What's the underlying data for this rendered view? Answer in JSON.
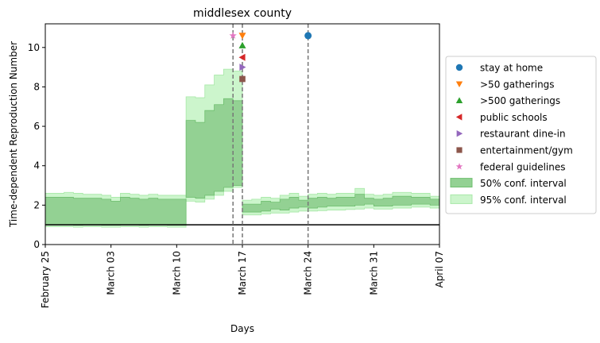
{
  "chart_data": {
    "type": "line",
    "title": "middlesex county",
    "xlabel": "Days",
    "ylabel": "Time-dependent Reproduction Number",
    "xlim": [
      "2020-02-25",
      "2020-04-07"
    ],
    "ylim": [
      0,
      11.2
    ],
    "x_ticks": [
      {
        "date": "2020-02-25",
        "label": "February 25"
      },
      {
        "date": "2020-03-03",
        "label": "March 03"
      },
      {
        "date": "2020-03-10",
        "label": "March 10"
      },
      {
        "date": "2020-03-17",
        "label": "March 17"
      },
      {
        "date": "2020-03-24",
        "label": "March 24"
      },
      {
        "date": "2020-03-31",
        "label": "March 31"
      },
      {
        "date": "2020-04-07",
        "label": "April 07"
      }
    ],
    "y_ticks": [
      0,
      2,
      4,
      6,
      8,
      10
    ],
    "reference_line": {
      "y": 1,
      "color": "#000000"
    },
    "vertical_lines": [
      "2020-03-16",
      "2020-03-17",
      "2020-03-24"
    ],
    "dates": [
      "2020-02-25",
      "2020-02-26",
      "2020-02-27",
      "2020-02-28",
      "2020-02-29",
      "2020-03-01",
      "2020-03-02",
      "2020-03-03",
      "2020-03-04",
      "2020-03-05",
      "2020-03-06",
      "2020-03-07",
      "2020-03-08",
      "2020-03-09",
      "2020-03-10",
      "2020-03-11",
      "2020-03-12",
      "2020-03-13",
      "2020-03-14",
      "2020-03-15",
      "2020-03-16",
      "2020-03-17",
      "2020-03-18",
      "2020-03-19",
      "2020-03-20",
      "2020-03-21",
      "2020-03-22",
      "2020-03-23",
      "2020-03-24",
      "2020-03-25",
      "2020-03-26",
      "2020-03-27",
      "2020-03-28",
      "2020-03-29",
      "2020-03-30",
      "2020-03-31",
      "2020-04-01",
      "2020-04-02",
      "2020-04-03",
      "2020-04-04",
      "2020-04-05",
      "2020-04-06"
    ],
    "series": [
      {
        "name": "95% conf. interval",
        "color": "#ccf5cc",
        "edge": "#a8e8a8",
        "lower": [
          0.9,
          0.9,
          0.9,
          0.88,
          0.9,
          0.9,
          0.88,
          0.88,
          0.9,
          0.9,
          0.88,
          0.9,
          0.9,
          0.88,
          0.88,
          2.2,
          2.15,
          2.3,
          2.5,
          2.7,
          2.9,
          1.5,
          1.5,
          1.55,
          1.6,
          1.6,
          1.65,
          1.7,
          1.7,
          1.72,
          1.75,
          1.75,
          1.78,
          1.8,
          1.85,
          1.8,
          1.8,
          1.85,
          1.85,
          1.9,
          1.9,
          1.85
        ],
        "upper": [
          2.6,
          2.6,
          2.65,
          2.6,
          2.55,
          2.55,
          2.5,
          2.4,
          2.6,
          2.55,
          2.5,
          2.55,
          2.5,
          2.5,
          2.5,
          7.5,
          7.45,
          8.1,
          8.6,
          8.9,
          8.8,
          2.25,
          2.3,
          2.4,
          2.35,
          2.5,
          2.6,
          2.45,
          2.55,
          2.6,
          2.55,
          2.6,
          2.6,
          2.85,
          2.55,
          2.5,
          2.55,
          2.65,
          2.65,
          2.6,
          2.6,
          2.45
        ]
      },
      {
        "name": "50% conf. interval",
        "color": "#93d193",
        "edge": "#6fbf6f",
        "lower": [
          1.0,
          1.0,
          1.0,
          0.98,
          1.0,
          1.0,
          0.98,
          0.98,
          1.0,
          1.0,
          0.98,
          1.0,
          1.0,
          0.98,
          0.98,
          2.4,
          2.35,
          2.5,
          2.7,
          2.9,
          3.0,
          1.65,
          1.65,
          1.7,
          1.8,
          1.75,
          1.85,
          1.9,
          1.85,
          1.9,
          1.95,
          1.95,
          1.95,
          2.0,
          2.05,
          1.95,
          1.95,
          2.0,
          2.0,
          2.05,
          2.05,
          2.0
        ],
        "upper": [
          2.4,
          2.4,
          2.4,
          2.35,
          2.35,
          2.35,
          2.3,
          2.2,
          2.4,
          2.35,
          2.3,
          2.35,
          2.3,
          2.3,
          2.3,
          6.3,
          6.2,
          6.8,
          7.1,
          7.4,
          7.3,
          2.05,
          2.05,
          2.2,
          2.15,
          2.3,
          2.4,
          2.25,
          2.35,
          2.4,
          2.35,
          2.4,
          2.4,
          2.55,
          2.35,
          2.3,
          2.35,
          2.45,
          2.45,
          2.4,
          2.4,
          2.3
        ]
      }
    ],
    "events": [
      {
        "name": "stay at home",
        "date": "2020-03-24",
        "y": 10.6,
        "marker": "circle",
        "color": "#1f77b4"
      },
      {
        "name": ">50 gatherings",
        "date": "2020-03-17",
        "y": 10.6,
        "marker": "triangle-down",
        "color": "#ff7f0e"
      },
      {
        "name": ">500 gatherings",
        "date": "2020-03-17",
        "y": 10.1,
        "marker": "triangle-up",
        "color": "#2ca02c"
      },
      {
        "name": "public schools",
        "date": "2020-03-17",
        "y": 9.5,
        "marker": "triangle-left",
        "color": "#d62728"
      },
      {
        "name": "restaurant dine-in",
        "date": "2020-03-17",
        "y": 9.0,
        "marker": "triangle-right",
        "color": "#9467bd"
      },
      {
        "name": "entertainment/gym",
        "date": "2020-03-17",
        "y": 8.4,
        "marker": "square",
        "color": "#8c564b"
      },
      {
        "name": "federal guidelines",
        "date": "2020-03-16",
        "y": 10.6,
        "marker": "star",
        "color": "#e377c2"
      }
    ],
    "legend": {
      "position": "right",
      "entries": [
        {
          "label": "stay at home",
          "marker": "circle",
          "color": "#1f77b4"
        },
        {
          "label": ">50 gatherings",
          "marker": "triangle-down",
          "color": "#ff7f0e"
        },
        {
          "label": ">500 gatherings",
          "marker": "triangle-up",
          "color": "#2ca02c"
        },
        {
          "label": "public schools",
          "marker": "triangle-left",
          "color": "#d62728"
        },
        {
          "label": "restaurant dine-in",
          "marker": "triangle-right",
          "color": "#9467bd"
        },
        {
          "label": "entertainment/gym",
          "marker": "square",
          "color": "#8c564b"
        },
        {
          "label": "federal guidelines",
          "marker": "star",
          "color": "#e377c2"
        },
        {
          "label": "50% conf. interval",
          "marker": "patch",
          "color": "#93d193",
          "edge": "#6fbf6f"
        },
        {
          "label": "95% conf. interval",
          "marker": "patch",
          "color": "#ccf5cc",
          "edge": "#a8e8a8"
        }
      ]
    }
  }
}
